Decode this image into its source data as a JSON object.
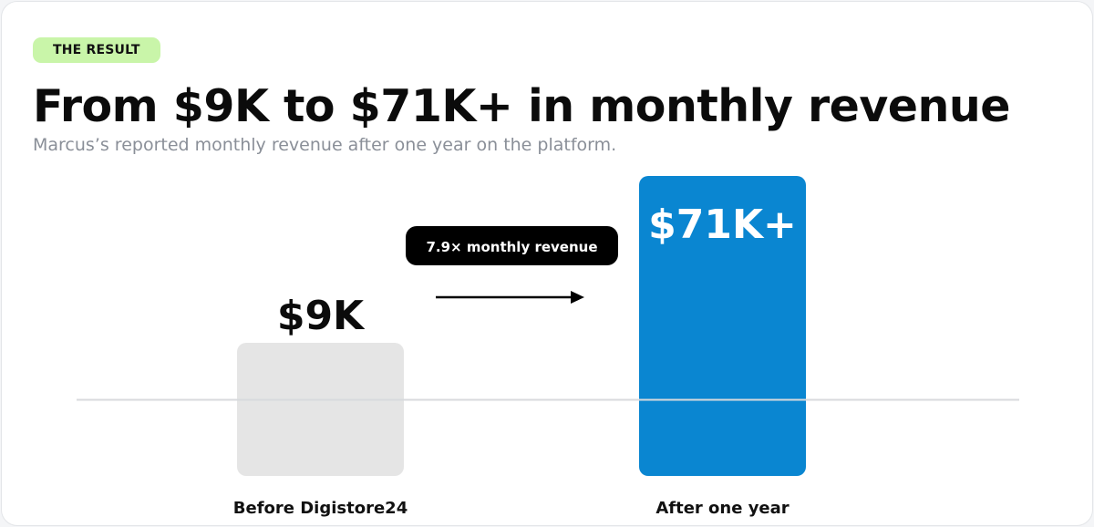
{
  "badge": "THE RESULT",
  "title": "From $9K to $71K+ in monthly revenue",
  "subtitle": "Marcus’s reported monthly revenue after one year on the platform.",
  "multiplier_label": "7.9× monthly revenue",
  "colors": {
    "badge_bg": "#c9f5a9",
    "before_bar": "#e5e5e5",
    "after_bar": "#0a86d1",
    "pill_bg": "#000000"
  },
  "chart_data": {
    "type": "bar",
    "categories": [
      "Before Digistore24",
      "After one year"
    ],
    "values": [
      9,
      71
    ],
    "value_labels": [
      "$9K",
      "$71K+"
    ],
    "unit": "thousand USD per month",
    "title": "From $9K to $71K+ in monthly revenue",
    "xlabel": "",
    "ylabel": "",
    "grid": false
  }
}
